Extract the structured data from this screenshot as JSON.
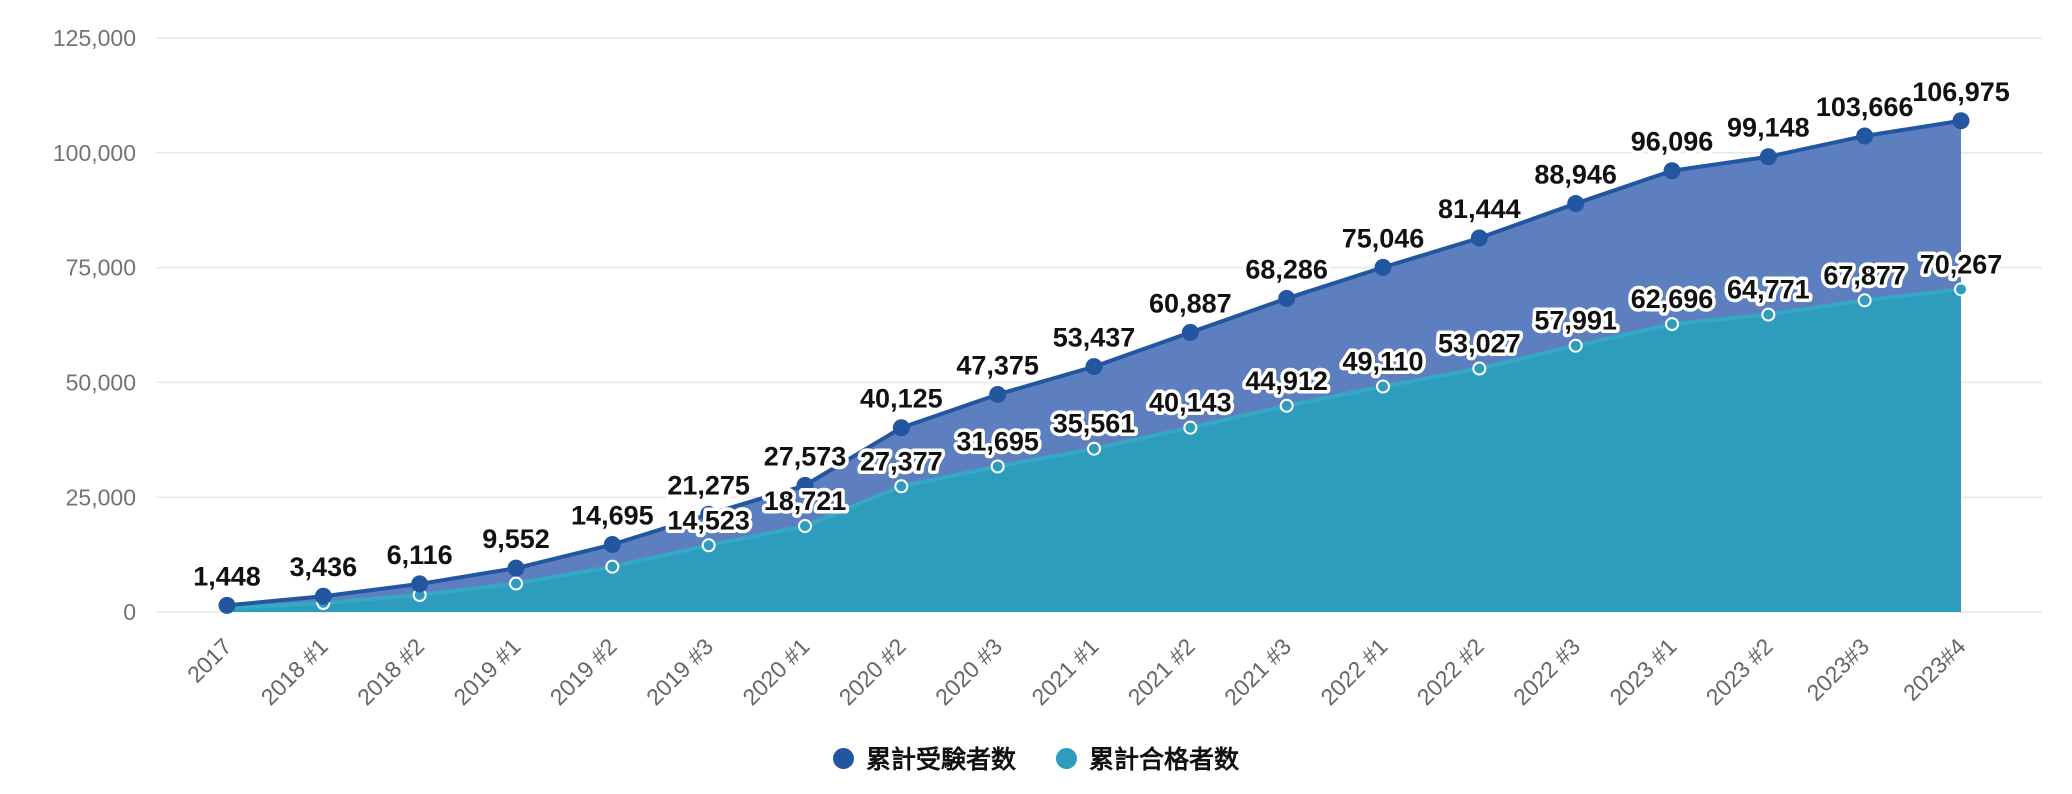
{
  "chart_data": {
    "type": "area",
    "title": "",
    "xlabel": "",
    "ylabel": "",
    "ylim": [
      0,
      125000
    ],
    "grid": "horizontal",
    "legend_position": "bottom",
    "categories": [
      "2017",
      "2018 #1",
      "2018 #2",
      "2019 #1",
      "2019 #2",
      "2019 #3",
      "2020 #1",
      "2020 #2",
      "2020 #3",
      "2021 #1",
      "2021 #2",
      "2021 #3",
      "2022 #1",
      "2022 #2",
      "2022 #3",
      "2023 #1",
      "2023 #2",
      "2023#3",
      "2023#4"
    ],
    "yticks": [
      {
        "value": 0,
        "label": "0"
      },
      {
        "value": 25000,
        "label": "25,000"
      },
      {
        "value": 50000,
        "label": "50,000"
      },
      {
        "value": 75000,
        "label": "75,000"
      },
      {
        "value": 100000,
        "label": "100,000"
      },
      {
        "value": 125000,
        "label": "125,000"
      }
    ],
    "series": [
      {
        "name": "累計受験者数",
        "color": "#2356a0",
        "area_color": "#5d7fc0",
        "area_opacity": 1,
        "values": [
          1448,
          3436,
          6116,
          9552,
          14695,
          21275,
          27573,
          40125,
          47375,
          53437,
          60887,
          68286,
          75046,
          81444,
          88946,
          96096,
          99148,
          103666,
          106975
        ],
        "labels": [
          "1,448",
          "3,436",
          "6,116",
          "9,552",
          "14,695",
          "21,275",
          "27,573",
          "40,125",
          "47,375",
          "53,437",
          "60,887",
          "68,286",
          "75,046",
          "81,444",
          "88,946",
          "96,096",
          "99,148",
          "103,666",
          "106,975"
        ]
      },
      {
        "name": "累計合格者数",
        "color": "#2d9cbd",
        "area_color": "#2e9dbd",
        "area_opacity": 1,
        "values": [
          823,
          1959,
          3699,
          6199,
          9871,
          14523,
          18721,
          27377,
          31695,
          35561,
          40143,
          44912,
          49110,
          53027,
          57991,
          62696,
          64771,
          67877,
          70267
        ],
        "labels": [
          null,
          null,
          null,
          null,
          null,
          "14,523",
          "18,721",
          "27,377",
          "31,695",
          "35,561",
          "40,143",
          "44,912",
          "49,110",
          "53,027",
          "57,991",
          "62,696",
          "64,771",
          "67,877",
          "70,267"
        ]
      }
    ]
  }
}
